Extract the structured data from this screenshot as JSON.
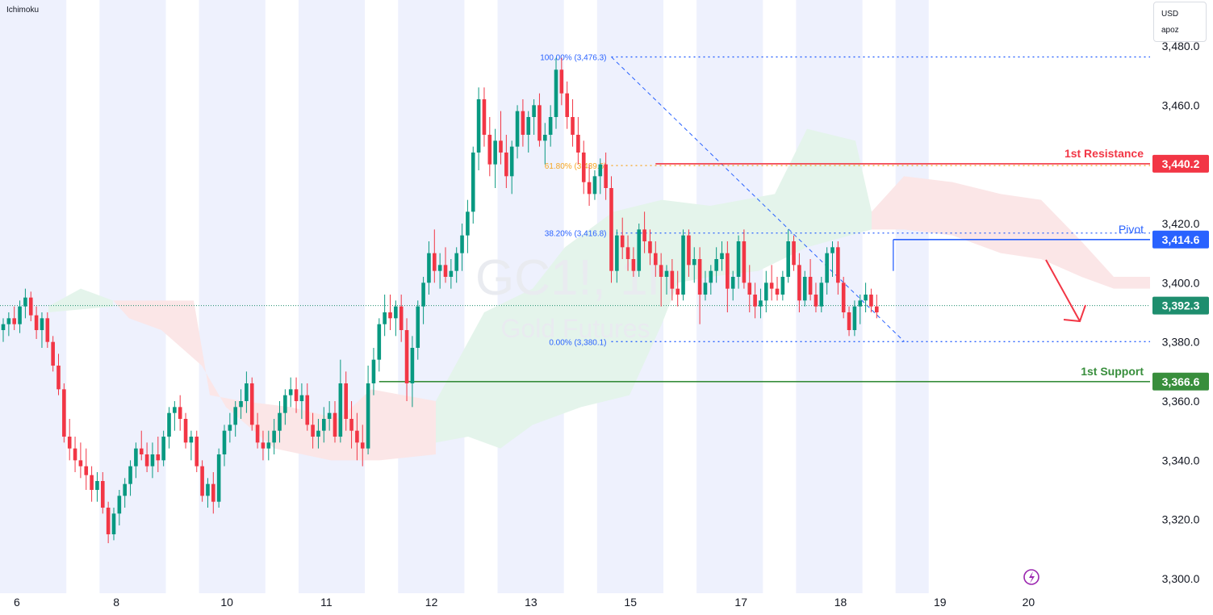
{
  "indicator": "Ichimoku",
  "currency": {
    "code": "USD",
    "user": "apoz"
  },
  "watermark": {
    "symbol": "GC1!, 1h",
    "name": "Gold Futures"
  },
  "colors": {
    "up": "#089981",
    "down": "#f23645",
    "resistance": "#f23645",
    "pivot": "#2962ff",
    "support": "#388e3c",
    "current": "#1e8e6e",
    "fib": "#2962ff",
    "fib_gold": "#f5a623",
    "session_band": "#eef1fd",
    "cloud_green": "#e3f3ea",
    "cloud_red": "#fbe5e6"
  },
  "annotations": {
    "resistance": {
      "label": "1st Resistance",
      "price": "3,440.2"
    },
    "pivot": {
      "label": "Pivot",
      "price": "3,414.6"
    },
    "support": {
      "label": "1st Support",
      "price": "3,366.6"
    },
    "current_price": "3,392.3"
  },
  "fib_labels": {
    "f100": "100.00% (3,476.3)",
    "f618": "61.80% (3,439.6)",
    "f382": "38.20% (3,416.8)",
    "f0": "0.00% (3,380.1)"
  },
  "chart_data": {
    "type": "candlestick",
    "title": "",
    "xlabel": "",
    "ylabel": "",
    "ylim": [
      3295,
      3487
    ],
    "y_ticks": [
      "3,300.0",
      "3,320.0",
      "3,340.0",
      "3,360.0",
      "3,380.0",
      "3,400.0",
      "3,420.0",
      "3,440.0",
      "3,460.0",
      "3,480.0"
    ],
    "y_tick_values": [
      3300,
      3320,
      3340,
      3360,
      3380,
      3400,
      3420,
      3440,
      3460,
      3480
    ],
    "x_ticks": [
      "6",
      "8",
      "10",
      "11",
      "12",
      "13",
      "15",
      "17",
      "18",
      "19",
      "20"
    ],
    "x_tick_bars": [
      1,
      19,
      39,
      57,
      76,
      94,
      112,
      132,
      150,
      168,
      184
    ],
    "levels": {
      "resistance": 3440.2,
      "pivot": 3414.6,
      "support": 3366.6,
      "current": 3392.3
    },
    "fibonacci": {
      "high": 3476.3,
      "low": 3380.1,
      "f618": 3439.6,
      "f382": 3416.8,
      "high_bar": 110,
      "low_bar": 163
    },
    "session_bands": [
      [
        0,
        12
      ],
      [
        18,
        30
      ],
      [
        36,
        48
      ],
      [
        54,
        66
      ],
      [
        72,
        84
      ],
      [
        90,
        102
      ],
      [
        108,
        120
      ],
      [
        126,
        138
      ],
      [
        144,
        156
      ],
      [
        162,
        168
      ]
    ],
    "candles": [
      [
        3384,
        3388,
        3380,
        3386
      ],
      [
        3386,
        3390,
        3382,
        3388
      ],
      [
        3388,
        3392,
        3384,
        3386
      ],
      [
        3386,
        3394,
        3383,
        3392
      ],
      [
        3392,
        3398,
        3388,
        3395
      ],
      [
        3395,
        3397,
        3387,
        3389
      ],
      [
        3389,
        3392,
        3381,
        3384
      ],
      [
        3384,
        3390,
        3378,
        3388
      ],
      [
        3388,
        3390,
        3378,
        3380
      ],
      [
        3380,
        3382,
        3370,
        3372
      ],
      [
        3372,
        3376,
        3362,
        3364
      ],
      [
        3364,
        3366,
        3346,
        3348
      ],
      [
        3348,
        3354,
        3340,
        3344
      ],
      [
        3344,
        3348,
        3336,
        3340
      ],
      [
        3340,
        3346,
        3334,
        3338
      ],
      [
        3338,
        3344,
        3330,
        3335
      ],
      [
        3335,
        3338,
        3326,
        3330
      ],
      [
        3330,
        3336,
        3326,
        3333
      ],
      [
        3333,
        3336,
        3322,
        3324
      ],
      [
        3324,
        3326,
        3312,
        3315
      ],
      [
        3315,
        3324,
        3313,
        3322
      ],
      [
        3322,
        3330,
        3318,
        3328
      ],
      [
        3328,
        3334,
        3324,
        3332
      ],
      [
        3332,
        3340,
        3328,
        3338
      ],
      [
        3338,
        3346,
        3334,
        3344
      ],
      [
        3344,
        3350,
        3340,
        3342
      ],
      [
        3342,
        3346,
        3336,
        3338
      ],
      [
        3338,
        3346,
        3334,
        3342
      ],
      [
        3342,
        3348,
        3336,
        3340
      ],
      [
        3340,
        3350,
        3338,
        3348
      ],
      [
        3348,
        3358,
        3344,
        3356
      ],
      [
        3356,
        3360,
        3350,
        3358
      ],
      [
        3358,
        3362,
        3350,
        3354
      ],
      [
        3354,
        3356,
        3344,
        3346
      ],
      [
        3346,
        3350,
        3340,
        3348
      ],
      [
        3348,
        3350,
        3336,
        3338
      ],
      [
        3338,
        3340,
        3326,
        3328
      ],
      [
        3328,
        3334,
        3324,
        3332
      ],
      [
        3332,
        3336,
        3322,
        3326
      ],
      [
        3326,
        3344,
        3324,
        3342
      ],
      [
        3342,
        3352,
        3338,
        3350
      ],
      [
        3350,
        3356,
        3346,
        3352
      ],
      [
        3352,
        3360,
        3348,
        3358
      ],
      [
        3358,
        3364,
        3354,
        3360
      ],
      [
        3360,
        3370,
        3356,
        3366
      ],
      [
        3366,
        3368,
        3350,
        3352
      ],
      [
        3352,
        3356,
        3344,
        3346
      ],
      [
        3346,
        3350,
        3340,
        3344
      ],
      [
        3344,
        3350,
        3340,
        3346
      ],
      [
        3346,
        3354,
        3342,
        3350
      ],
      [
        3350,
        3360,
        3346,
        3356
      ],
      [
        3356,
        3364,
        3352,
        3362
      ],
      [
        3362,
        3368,
        3358,
        3364
      ],
      [
        3364,
        3368,
        3356,
        3360
      ],
      [
        3360,
        3366,
        3354,
        3362
      ],
      [
        3362,
        3366,
        3350,
        3352
      ],
      [
        3352,
        3356,
        3344,
        3348
      ],
      [
        3348,
        3354,
        3344,
        3350
      ],
      [
        3350,
        3358,
        3346,
        3354
      ],
      [
        3354,
        3360,
        3350,
        3356
      ],
      [
        3356,
        3360,
        3346,
        3348
      ],
      [
        3348,
        3374,
        3346,
        3366
      ],
      [
        3366,
        3370,
        3350,
        3354
      ],
      [
        3354,
        3360,
        3344,
        3350
      ],
      [
        3350,
        3356,
        3340,
        3346
      ],
      [
        3346,
        3352,
        3338,
        3344
      ],
      [
        3344,
        3372,
        3342,
        3366
      ],
      [
        3366,
        3378,
        3362,
        3374
      ],
      [
        3374,
        3388,
        3370,
        3386
      ],
      [
        3386,
        3396,
        3382,
        3390
      ],
      [
        3390,
        3396,
        3384,
        3388
      ],
      [
        3388,
        3394,
        3382,
        3392
      ],
      [
        3392,
        3396,
        3380,
        3384
      ],
      [
        3384,
        3388,
        3360,
        3366
      ],
      [
        3366,
        3382,
        3358,
        3378
      ],
      [
        3378,
        3394,
        3374,
        3392
      ],
      [
        3392,
        3402,
        3386,
        3400
      ],
      [
        3400,
        3414,
        3396,
        3410
      ],
      [
        3410,
        3418,
        3400,
        3404
      ],
      [
        3404,
        3410,
        3398,
        3406
      ],
      [
        3406,
        3412,
        3400,
        3402
      ],
      [
        3402,
        3408,
        3398,
        3404
      ],
      [
        3404,
        3412,
        3400,
        3410
      ],
      [
        3410,
        3420,
        3404,
        3416
      ],
      [
        3416,
        3428,
        3410,
        3424
      ],
      [
        3424,
        3446,
        3420,
        3444
      ],
      [
        3444,
        3466,
        3438,
        3462
      ],
      [
        3462,
        3466,
        3446,
        3450
      ],
      [
        3450,
        3456,
        3436,
        3440
      ],
      [
        3440,
        3452,
        3432,
        3448
      ],
      [
        3448,
        3458,
        3440,
        3444
      ],
      [
        3444,
        3450,
        3432,
        3436
      ],
      [
        3436,
        3448,
        3430,
        3446
      ],
      [
        3446,
        3460,
        3442,
        3458
      ],
      [
        3458,
        3462,
        3446,
        3450
      ],
      [
        3450,
        3458,
        3444,
        3456
      ],
      [
        3456,
        3462,
        3450,
        3460
      ],
      [
        3460,
        3464,
        3446,
        3448
      ],
      [
        3448,
        3454,
        3440,
        3450
      ],
      [
        3450,
        3460,
        3446,
        3456
      ],
      [
        3456,
        3476,
        3452,
        3472
      ],
      [
        3472,
        3476,
        3460,
        3464
      ],
      [
        3464,
        3468,
        3452,
        3456
      ],
      [
        3456,
        3462,
        3446,
        3450
      ],
      [
        3450,
        3456,
        3440,
        3444
      ],
      [
        3444,
        3448,
        3430,
        3434
      ],
      [
        3434,
        3440,
        3426,
        3430
      ],
      [
        3430,
        3438,
        3428,
        3436
      ],
      [
        3436,
        3442,
        3430,
        3440
      ],
      [
        3440,
        3444,
        3428,
        3432
      ],
      [
        3432,
        3436,
        3400,
        3404
      ],
      [
        3404,
        3418,
        3400,
        3416
      ],
      [
        3416,
        3422,
        3408,
        3412
      ],
      [
        3412,
        3416,
        3404,
        3408
      ],
      [
        3408,
        3412,
        3402,
        3404
      ],
      [
        3404,
        3420,
        3402,
        3418
      ],
      [
        3418,
        3424,
        3410,
        3414
      ],
      [
        3414,
        3418,
        3406,
        3410
      ],
      [
        3410,
        3414,
        3402,
        3406
      ],
      [
        3406,
        3410,
        3392,
        3402
      ],
      [
        3402,
        3406,
        3396,
        3404
      ],
      [
        3404,
        3408,
        3394,
        3398
      ],
      [
        3398,
        3404,
        3392,
        3396
      ],
      [
        3396,
        3418,
        3394,
        3416
      ],
      [
        3416,
        3418,
        3402,
        3406
      ],
      [
        3406,
        3412,
        3400,
        3408
      ],
      [
        3408,
        3412,
        3386,
        3396
      ],
      [
        3396,
        3404,
        3394,
        3400
      ],
      [
        3400,
        3406,
        3396,
        3404
      ],
      [
        3404,
        3412,
        3400,
        3408
      ],
      [
        3408,
        3414,
        3404,
        3410
      ],
      [
        3410,
        3414,
        3390,
        3398
      ],
      [
        3398,
        3404,
        3394,
        3402
      ],
      [
        3402,
        3416,
        3398,
        3414
      ],
      [
        3414,
        3418,
        3398,
        3400
      ],
      [
        3400,
        3406,
        3390,
        3396
      ],
      [
        3396,
        3400,
        3388,
        3392
      ],
      [
        3392,
        3398,
        3388,
        3394
      ],
      [
        3394,
        3404,
        3390,
        3400
      ],
      [
        3400,
        3406,
        3394,
        3398
      ],
      [
        3398,
        3402,
        3394,
        3396
      ],
      [
        3396,
        3404,
        3394,
        3402
      ],
      [
        3402,
        3418,
        3400,
        3414
      ],
      [
        3414,
        3416,
        3404,
        3406
      ],
      [
        3406,
        3410,
        3390,
        3394
      ],
      [
        3394,
        3404,
        3392,
        3402
      ],
      [
        3402,
        3408,
        3394,
        3396
      ],
      [
        3396,
        3400,
        3390,
        3392
      ],
      [
        3392,
        3402,
        3390,
        3400
      ],
      [
        3400,
        3412,
        3396,
        3410
      ],
      [
        3410,
        3414,
        3402,
        3412
      ],
      [
        3412,
        3414,
        3396,
        3400
      ],
      [
        3400,
        3402,
        3388,
        3390
      ],
      [
        3390,
        3392,
        3382,
        3384
      ],
      [
        3384,
        3394,
        3382,
        3392
      ],
      [
        3392,
        3396,
        3386,
        3394
      ],
      [
        3394,
        3400,
        3390,
        3396
      ],
      [
        3396,
        3398,
        3390,
        3392
      ],
      [
        3392,
        3396,
        3388,
        3390
      ]
    ]
  }
}
